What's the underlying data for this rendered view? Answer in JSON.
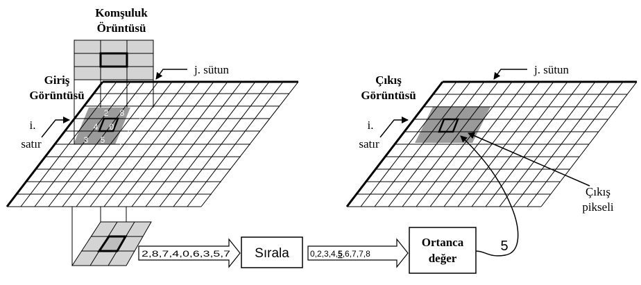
{
  "neighborhood_title": [
    "Komşuluk",
    "Örüntüsü"
  ],
  "input_title": [
    "Giriş",
    "Görüntüsü"
  ],
  "output_title": [
    "Çıkış",
    "Görüntüsü"
  ],
  "column_label": "j. sütun",
  "row_label": [
    "i.",
    "satır"
  ],
  "output_pixel_label": [
    "Çıkış",
    "pikseli"
  ],
  "neighborhood_values": [
    "2",
    "8",
    "7",
    "4",
    "0",
    "6",
    "3",
    "5",
    "7"
  ],
  "unsorted_sequence": "2,8,7,4,0,6,3,5,7",
  "sort_label": "Sırala",
  "sorted_sequence": {
    "before": "0,2,3,4,",
    "median": "5",
    "after": ",6,7,7,8"
  },
  "median_box": [
    "Ortanca",
    "değer"
  ],
  "median_value": "5",
  "colors": {
    "grid_line": "#000000",
    "window_fill": "#9a9a9a",
    "pattern_fill": "#d4d4d4",
    "pattern_center": "#bdbdbd",
    "box_fill": "#ffffff"
  }
}
